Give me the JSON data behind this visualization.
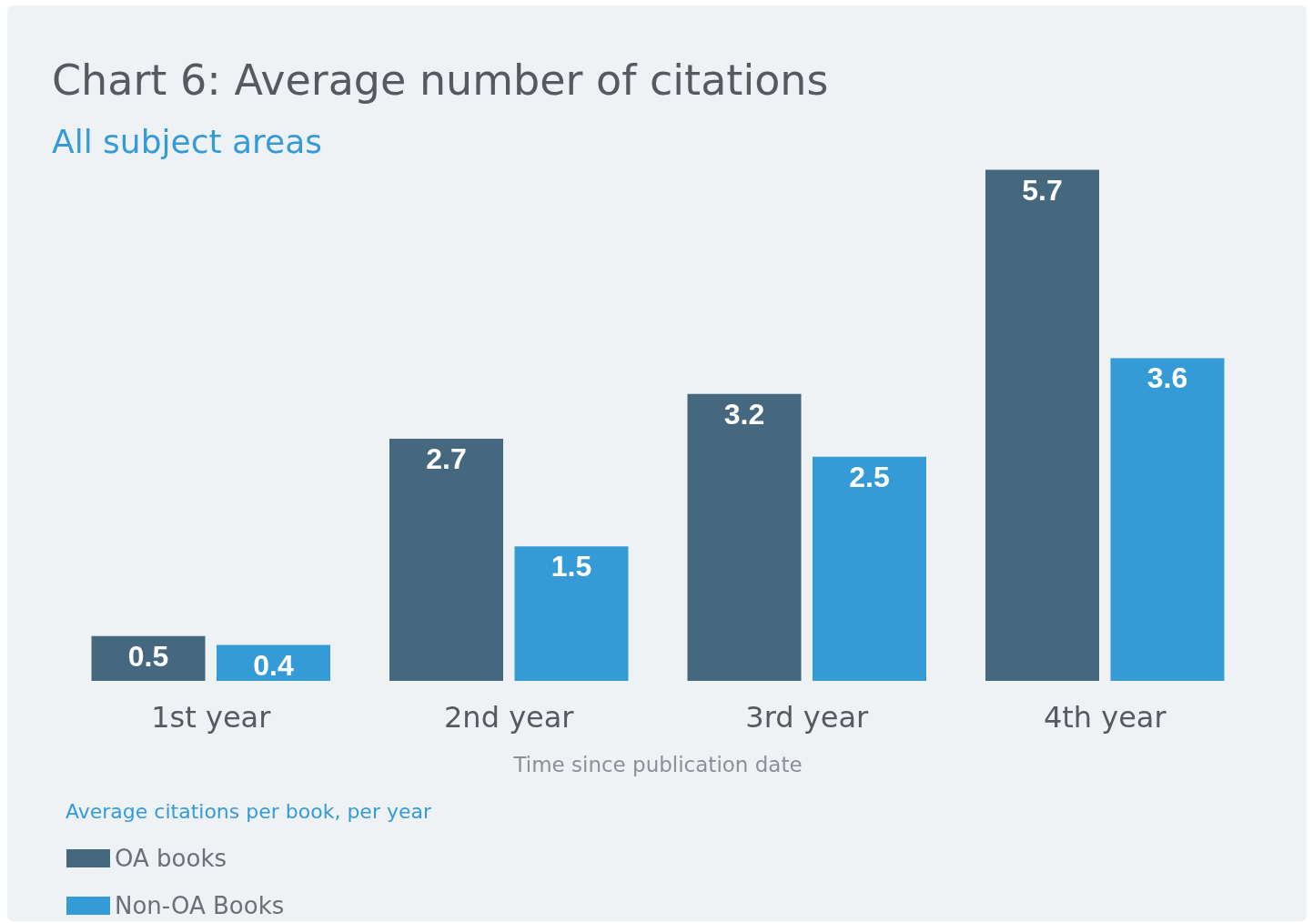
{
  "chart_data": {
    "type": "bar",
    "title": "Chart 6: Average number of citations",
    "subtitle": "All subject areas",
    "xlabel": "Time since publication date",
    "legend_title": "Average citations per book, per year",
    "categories": [
      "1st year",
      "2nd year",
      "3rd year",
      "4th year"
    ],
    "series": [
      {
        "name": "OA books",
        "color": "#46687e",
        "values": [
          0.5,
          2.7,
          3.2,
          5.7
        ]
      },
      {
        "name": "Non-OA Books",
        "color": "#359bd6",
        "values": [
          0.4,
          1.5,
          2.5,
          3.6
        ]
      }
    ],
    "data_labels": true,
    "grid": false,
    "legend": "bottom left"
  }
}
